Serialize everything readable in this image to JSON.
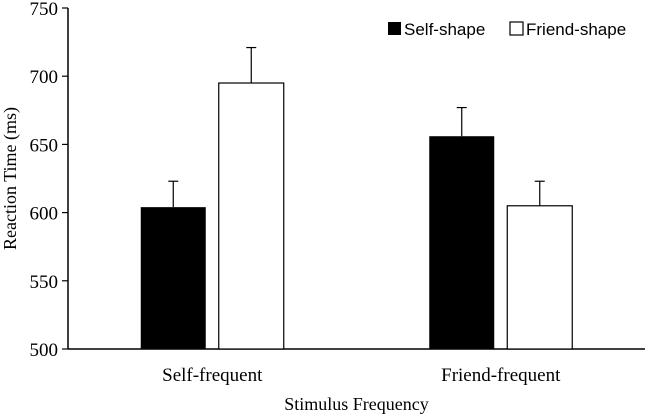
{
  "chart_data": {
    "type": "bar",
    "title": "",
    "xlabel": "Stimulus Frequency",
    "ylabel": "Reaction Time (ms)",
    "ylim": [
      500,
      750
    ],
    "yticks": [
      "500",
      "550",
      "600",
      "650",
      "700",
      "750"
    ],
    "categories": [
      "Self-frequent",
      "Friend-frequent"
    ],
    "series": [
      {
        "name": "Self-shape",
        "values": [
          604,
          656
        ],
        "errors": [
          19,
          21
        ],
        "color": "#000000",
        "fill": "solid"
      },
      {
        "name": "Friend-shape",
        "values": [
          695,
          605
        ],
        "errors": [
          26,
          18
        ],
        "color": "#ffffff",
        "fill": "outline"
      }
    ],
    "legend": {
      "position": "top-right"
    },
    "grid": false
  }
}
